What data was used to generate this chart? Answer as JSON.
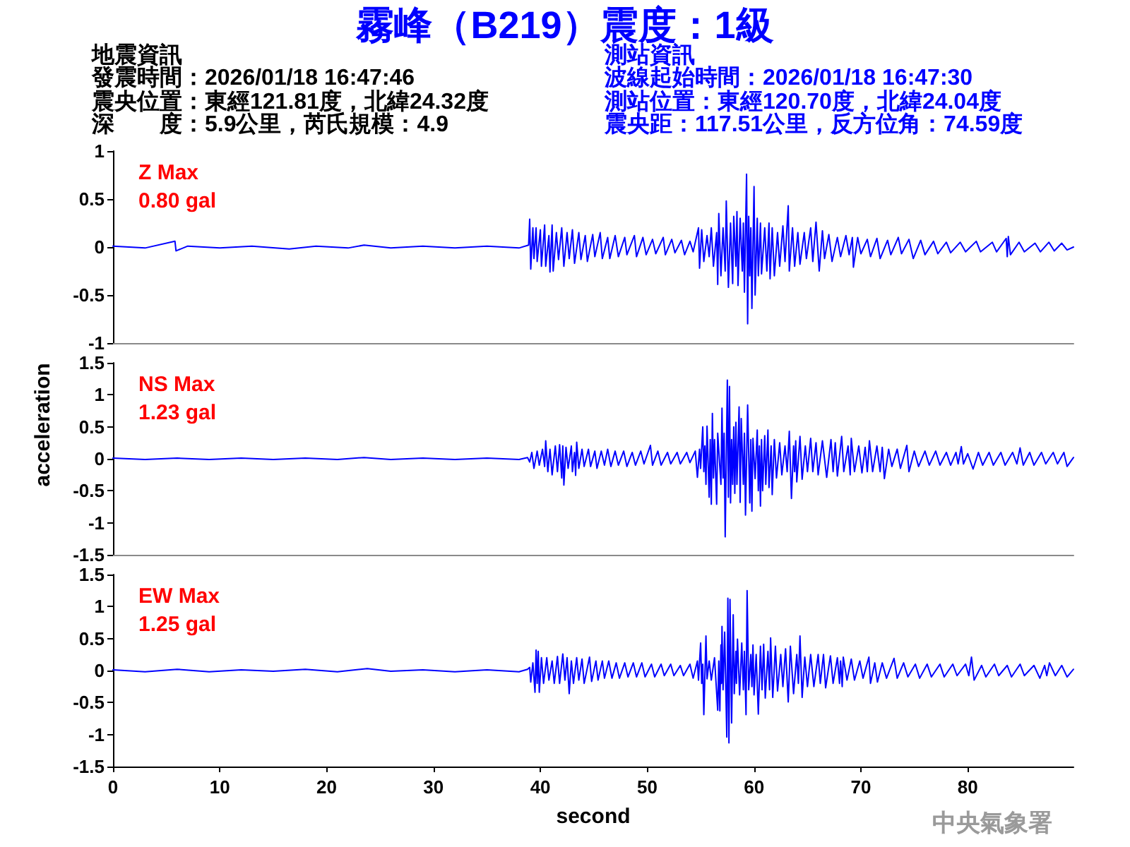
{
  "chart_data": [
    {
      "type": "other",
      "title": "霧峰（B219）震度：1級",
      "annotations": [
        "地震資訊",
        "發震時間：2026/01/18 16:47:46",
        "震央位置：東經121.81度，北緯24.32度",
        "深　　度：5.9公里，芮氏規模：4.9",
        "測站資訊",
        "波線起始時間：2026/01/18 16:47:30",
        "測站位置：東經120.70度，北緯24.04度",
        "震央距：117.51公里，反方位角：74.59度"
      ]
    },
    {
      "type": "line",
      "title": "Z Max",
      "subtitle": "0.80 gal",
      "xlim": [
        0,
        89.9
      ],
      "ylim": [
        -1,
        1
      ],
      "yticks": [
        -1,
        -0.5,
        0,
        0.5,
        1
      ],
      "tick_labels": "y",
      "color": "#0000ff",
      "x": [
        0,
        3,
        5.8,
        5.9,
        7,
        10,
        13,
        16.5,
        19,
        22,
        23.5,
        26,
        29,
        32,
        35,
        38,
        38.9,
        39,
        39.1,
        39.3,
        39.4,
        39.6,
        39.7,
        40,
        40.1,
        40.4,
        40.5,
        40.8,
        40.9,
        41.1,
        41.2,
        41.5,
        41.7,
        42,
        42.2,
        42.5,
        42.7,
        43,
        43.2,
        43.6,
        43.8,
        44.2,
        44.4,
        44.9,
        45.1,
        45.6,
        45.8,
        46.3,
        46.5,
        47,
        47.3,
        47.9,
        48.1,
        48.8,
        49,
        49.6,
        49.9,
        50.5,
        50.8,
        51.5,
        51.7,
        52.3,
        52.6,
        53.2,
        53.5,
        54,
        54.3,
        54.8,
        54.9,
        55.1,
        55.3,
        55.6,
        55.8,
        56,
        56.2,
        56.5,
        56.6,
        56.7,
        56.9,
        57.1,
        57.3,
        57.4,
        57.6,
        57.8,
        58,
        58.1,
        58.3,
        58.4,
        58.5,
        58.7,
        58.9,
        59,
        59.1,
        59.3,
        59.4,
        59.5,
        59.6,
        59.7,
        59.8,
        60,
        60.1,
        60.3,
        60.4,
        60.6,
        60.7,
        61,
        61.2,
        61.4,
        61.5,
        61.7,
        61.9,
        62.2,
        62.4,
        62.7,
        62.9,
        63.2,
        63.3,
        63.6,
        63.8,
        64.1,
        64.3,
        64.7,
        64.9,
        65.3,
        65.5,
        65.8,
        66.1,
        66.4,
        66.6,
        67,
        67.3,
        67.8,
        68.1,
        68.6,
        68.9,
        69.2,
        69.3,
        69.7,
        70,
        70.6,
        70.9,
        71.5,
        71.8,
        72.5,
        72.8,
        73.5,
        73.8,
        74.5,
        74.9,
        75.6,
        76,
        76.8,
        77.2,
        78,
        78.4,
        79.3,
        79.8,
        80.8,
        81.2,
        82.3,
        82.7,
        83.6,
        83.7,
        83.8,
        84,
        84.8,
        85.3,
        86.3,
        86.8,
        87.6,
        88.1,
        88.8,
        89.3,
        89.9
      ],
      "values": [
        0.01,
        -0.01,
        0.06,
        -0.04,
        0.01,
        -0.01,
        0.01,
        -0.02,
        0.01,
        -0.01,
        0.02,
        -0.01,
        0.01,
        -0.01,
        0.01,
        -0.01,
        0.02,
        0.29,
        -0.23,
        0.2,
        -0.12,
        0.2,
        -0.15,
        0.18,
        -0.2,
        0.23,
        -0.2,
        0.12,
        -0.26,
        0.23,
        -0.25,
        0.15,
        -0.13,
        0.2,
        -0.2,
        0.15,
        -0.12,
        0.18,
        -0.17,
        0.15,
        -0.13,
        0.12,
        -0.15,
        0.13,
        -0.1,
        0.15,
        -0.12,
        0.1,
        -0.12,
        0.12,
        -0.1,
        0.1,
        -0.08,
        0.12,
        -0.1,
        0.1,
        -0.08,
        0.08,
        -0.07,
        0.1,
        -0.08,
        0.08,
        -0.06,
        0.07,
        -0.08,
        0.06,
        -0.05,
        0.2,
        -0.22,
        0.18,
        -0.15,
        0.12,
        -0.1,
        0.2,
        -0.2,
        0.15,
        -0.39,
        0.35,
        -0.3,
        0.2,
        -0.25,
        0.48,
        -0.42,
        0.25,
        -0.38,
        0.32,
        -0.2,
        0.37,
        -0.4,
        0.3,
        -0.25,
        0.25,
        -0.47,
        0.76,
        -0.8,
        0.32,
        -0.3,
        0.2,
        -0.64,
        0.63,
        -0.5,
        0.3,
        -0.3,
        0.25,
        -0.28,
        0.2,
        -0.25,
        0.25,
        -0.33,
        0.2,
        -0.3,
        0.15,
        -0.2,
        0.22,
        -0.15,
        0.43,
        -0.25,
        0.2,
        -0.2,
        0.15,
        -0.18,
        0.15,
        -0.12,
        0.2,
        -0.15,
        0.26,
        -0.25,
        0.17,
        -0.12,
        0.13,
        -0.15,
        0.1,
        -0.1,
        0.12,
        -0.08,
        0.1,
        -0.21,
        0.1,
        -0.07,
        0.08,
        -0.1,
        0.09,
        -0.12,
        0.07,
        -0.08,
        0.1,
        -0.07,
        0.08,
        -0.12,
        0.07,
        -0.08,
        0.06,
        -0.07,
        0.05,
        -0.06,
        0.05,
        -0.05,
        0.06,
        -0.05,
        0.05,
        -0.05,
        0.09,
        -0.1,
        0.11,
        -0.08,
        0.05,
        -0.05,
        0.04,
        -0.05,
        0.05,
        -0.04,
        0.04,
        -0.03,
        0
      ]
    },
    {
      "type": "line",
      "title": "NS Max",
      "subtitle": "1.23 gal",
      "ylabel": "acceleration",
      "xlim": [
        0,
        89.9
      ],
      "ylim": [
        -1.5,
        1.5
      ],
      "yticks": [
        -1.5,
        -1,
        -0.5,
        0,
        0.5,
        1,
        1.5
      ],
      "tick_labels": "y",
      "color": "#0000ff",
      "x": [
        0,
        3,
        6,
        9,
        12,
        15,
        18,
        21,
        23.5,
        26,
        29,
        32,
        35,
        38,
        38.8,
        39,
        39.2,
        39.4,
        39.7,
        39.9,
        40.2,
        40.4,
        40.5,
        40.7,
        40.9,
        41.1,
        41.4,
        41.6,
        41.8,
        42,
        42.1,
        42.2,
        42.4,
        42.6,
        42.9,
        43,
        43.2,
        43.3,
        43.4,
        43.6,
        43.9,
        44.1,
        44.5,
        44.7,
        45.1,
        45.3,
        45.7,
        46,
        46.3,
        46.6,
        47,
        47.3,
        47.8,
        48.1,
        48.6,
        48.9,
        49.4,
        49.7,
        50.3,
        50.5,
        51,
        51.3,
        51.9,
        52.2,
        52.8,
        53.1,
        53.7,
        54,
        54.5,
        54.7,
        54.9,
        55,
        55.2,
        55.3,
        55.4,
        55.5,
        55.6,
        55.8,
        55.9,
        56,
        56.1,
        56.2,
        56.3,
        56.5,
        56.6,
        56.9,
        57,
        57.1,
        57.2,
        57.3,
        57.5,
        57.6,
        57.7,
        57.8,
        57.9,
        58,
        58.1,
        58.2,
        58.3,
        58.4,
        58.6,
        58.7,
        58.8,
        59,
        59.1,
        59.2,
        59.4,
        59.6,
        59.7,
        59.8,
        59.9,
        60.1,
        60.3,
        60.4,
        60.5,
        60.6,
        60.7,
        60.8,
        61,
        61.1,
        61.3,
        61.4,
        61.6,
        61.7,
        61.9,
        62.1,
        62.4,
        62.6,
        62.9,
        63.1,
        63.3,
        63.5,
        63.7,
        63.8,
        63.9,
        64,
        64.3,
        64.5,
        64.8,
        65,
        65.3,
        65.5,
        65.8,
        66,
        66.4,
        66.8,
        67.2,
        67.4,
        67.6,
        67.8,
        68.2,
        68.4,
        68.8,
        69,
        69.1,
        69.4,
        69.8,
        70.1,
        70.4,
        70.6,
        70.8,
        71.1,
        71.5,
        71.8,
        72,
        72.2,
        72.6,
        72.9,
        73.4,
        73.7,
        74.3,
        74.5,
        75,
        75.4,
        76,
        76.4,
        77,
        77.4,
        78,
        78.4,
        78.9,
        79.1,
        79.4,
        79.6,
        80,
        80.5,
        81,
        81.4,
        82,
        82.4,
        83.1,
        83.5,
        84.2,
        84.6,
        84.9,
        85.2,
        85.8,
        86.2,
        86.9,
        87.3,
        88,
        88.4,
        89,
        89.3,
        89.9
      ],
      "values": [
        0.01,
        -0.01,
        0.01,
        -0.01,
        0.01,
        -0.01,
        0.01,
        -0.01,
        0.02,
        -0.01,
        0.01,
        -0.01,
        0.01,
        -0.01,
        0.02,
        -0.05,
        0.1,
        -0.15,
        0.12,
        -0.1,
        0.15,
        -0.12,
        0.28,
        -0.2,
        0.15,
        -0.25,
        0.2,
        -0.2,
        0.22,
        -0.3,
        0.2,
        -0.41,
        0.18,
        -0.15,
        0.2,
        -0.2,
        0.1,
        -0.26,
        0.26,
        -0.15,
        0.15,
        -0.12,
        0.15,
        -0.12,
        0.12,
        -0.15,
        0.12,
        -0.1,
        0.15,
        -0.12,
        0.12,
        -0.1,
        0.12,
        -0.12,
        0.1,
        -0.1,
        0.12,
        -0.08,
        0.21,
        -0.1,
        0.12,
        -0.1,
        0.1,
        -0.08,
        0.1,
        -0.08,
        0.1,
        -0.06,
        0.12,
        -0.29,
        0.15,
        -0.15,
        0.5,
        -0.2,
        0.2,
        -0.4,
        0.51,
        -0.6,
        0.3,
        -0.71,
        0.71,
        -0.3,
        0.3,
        -0.71,
        0.4,
        -0.4,
        0.79,
        -0.3,
        0.4,
        -1.22,
        1.23,
        -0.6,
        1.13,
        -0.69,
        0.3,
        -0.4,
        0.5,
        -0.54,
        0.57,
        -0.4,
        0.81,
        -0.68,
        0.63,
        -0.4,
        0.4,
        -0.88,
        0.84,
        -0.69,
        0.3,
        -0.82,
        0.32,
        -0.31,
        0.45,
        -0.5,
        0.2,
        -0.74,
        0.3,
        -0.5,
        0.36,
        -0.4,
        0.45,
        -0.45,
        0.2,
        -0.56,
        0.3,
        -0.3,
        0.25,
        -0.25,
        0.2,
        -0.2,
        0.43,
        -0.62,
        0.2,
        -0.2,
        0.28,
        -0.36,
        0.35,
        -0.32,
        0.2,
        -0.2,
        0.32,
        -0.2,
        0.25,
        -0.25,
        0.28,
        -0.29,
        0.3,
        -0.2,
        0.25,
        -0.27,
        0.35,
        -0.2,
        0.2,
        -0.25,
        0.32,
        -0.2,
        0.2,
        -0.22,
        0.18,
        -0.2,
        0.28,
        -0.2,
        0.2,
        -0.2,
        0.18,
        -0.31,
        0.15,
        -0.12,
        0.15,
        -0.15,
        0.21,
        -0.2,
        0.12,
        -0.12,
        0.12,
        -0.1,
        0.12,
        -0.1,
        0.1,
        -0.1,
        0.1,
        -0.08,
        0.19,
        -0.08,
        0.08,
        -0.16,
        0.1,
        -0.1,
        0.1,
        -0.1,
        0.1,
        -0.1,
        0.1,
        -0.08,
        0.17,
        -0.1,
        0.1,
        -0.1,
        0.1,
        -0.08,
        0.1,
        -0.08,
        0.1,
        -0.12,
        0.02
      ]
    },
    {
      "type": "line",
      "title": "EW Max",
      "subtitle": "1.25 gal",
      "xlabel": "second",
      "annotations": [
        "中央氣象署"
      ],
      "xlim": [
        0,
        89.9
      ],
      "xticks": [
        0,
        10,
        20,
        30,
        40,
        50,
        60,
        70,
        80
      ],
      "ylim": [
        -1.5,
        1.5
      ],
      "yticks": [
        -1.5,
        -1,
        -0.5,
        0,
        0.5,
        1,
        1.5
      ],
      "color": "#0000ff",
      "x": [
        0,
        3,
        6,
        9,
        12,
        15,
        18,
        21,
        23.8,
        26,
        29,
        32,
        35,
        38,
        38.8,
        39,
        39.1,
        39.3,
        39.5,
        39.6,
        39.7,
        39.8,
        39.9,
        40.1,
        40.3,
        40.6,
        40.8,
        41.1,
        41.3,
        41.6,
        41.8,
        42.1,
        42.3,
        42.5,
        42.7,
        42.9,
        43.1,
        43.4,
        43.6,
        43.9,
        44.1,
        44.6,
        44.8,
        45.2,
        45.4,
        45.8,
        46,
        46.4,
        46.7,
        47.1,
        47.4,
        47.9,
        48.2,
        48.7,
        49,
        49.5,
        49.8,
        50.4,
        50.7,
        51.3,
        51.6,
        52.2,
        52.5,
        53.1,
        53.4,
        54,
        54.3,
        54.7,
        54.8,
        55,
        55.1,
        55.2,
        55.3,
        55.5,
        55.6,
        55.8,
        56,
        56.3,
        56.6,
        56.7,
        56.8,
        56.9,
        56.95,
        57,
        57.1,
        57.25,
        57.45,
        57.55,
        57.65,
        57.75,
        57.9,
        58.05,
        58.15,
        58.3,
        58.35,
        58.45,
        58.65,
        58.85,
        59,
        59.1,
        59.25,
        59.35,
        59.5,
        59.7,
        59.8,
        59.9,
        60,
        60.2,
        60.4,
        60.6,
        60.75,
        60.9,
        61.05,
        61.3,
        61.45,
        61.55,
        61.75,
        62,
        62.2,
        62.5,
        62.7,
        62.95,
        63.2,
        63.4,
        63.7,
        64,
        64.15,
        64.3,
        64.5,
        64.75,
        65,
        65.3,
        65.6,
        66,
        66.2,
        66.5,
        66.7,
        67.15,
        67.4,
        67.8,
        68,
        68.1,
        68.25,
        68.35,
        68.7,
        69.1,
        69.4,
        69.9,
        70.2,
        70.75,
        70.9,
        71.3,
        71.55,
        72,
        72.4,
        73.1,
        73.4,
        74,
        74.4,
        75.1,
        75.5,
        76.2,
        76.6,
        77.4,
        77.8,
        78.6,
        79,
        79.8,
        80.1,
        80.35,
        80.6,
        81.3,
        81.7,
        82.5,
        82.9,
        83.7,
        84.1,
        84.9,
        85.3,
        86.2,
        86.75,
        87.2,
        87.4,
        87.65,
        88.2,
        88.8,
        89.3,
        89.9
      ],
      "values": [
        0.01,
        -0.02,
        0.02,
        -0.02,
        0.01,
        -0.01,
        0.02,
        -0.02,
        0.03,
        -0.01,
        0.01,
        -0.02,
        0.01,
        -0.02,
        0.02,
        0.05,
        -0.18,
        0.12,
        -0.34,
        0.32,
        -0.2,
        0.3,
        -0.34,
        0.2,
        -0.2,
        0.2,
        -0.15,
        0.15,
        -0.2,
        0.22,
        -0.2,
        0.26,
        -0.15,
        0.2,
        -0.36,
        0.15,
        -0.2,
        0.2,
        -0.15,
        0.18,
        -0.2,
        0.21,
        -0.17,
        0.15,
        -0.15,
        0.15,
        -0.12,
        0.15,
        -0.12,
        0.12,
        -0.12,
        0.12,
        -0.1,
        0.12,
        -0.1,
        0.12,
        -0.1,
        0.1,
        -0.1,
        0.1,
        -0.08,
        0.1,
        -0.08,
        0.08,
        -0.08,
        0.1,
        -0.12,
        0.15,
        -0.15,
        0.43,
        -0.2,
        0.1,
        -0.69,
        0.54,
        -0.13,
        0.15,
        -0.15,
        0.2,
        -0.62,
        0.15,
        -0.63,
        0.4,
        -0.2,
        0.69,
        -0.3,
        0.6,
        -1.04,
        1.13,
        -1.13,
        1.11,
        -0.82,
        0.87,
        -0.36,
        0.3,
        -0.2,
        0.49,
        -0.38,
        0.43,
        -0.3,
        0.3,
        -0.69,
        1.25,
        -0.3,
        0.25,
        -0.25,
        0.4,
        -0.38,
        0.25,
        -0.68,
        0.38,
        -0.3,
        0.41,
        -0.43,
        0.3,
        -0.3,
        0.51,
        -0.42,
        0.38,
        -0.32,
        0.25,
        -0.25,
        0.34,
        -0.49,
        0.38,
        -0.36,
        0.25,
        -0.2,
        0.54,
        -0.42,
        0.21,
        -0.25,
        0.25,
        -0.25,
        0.25,
        -0.2,
        0.25,
        -0.27,
        0.23,
        -0.2,
        0.2,
        -0.2,
        0.15,
        -0.25,
        0.21,
        -0.15,
        0.18,
        -0.15,
        0.15,
        -0.12,
        0.21,
        -0.2,
        0.12,
        -0.18,
        0.12,
        -0.12,
        0.19,
        -0.12,
        0.12,
        -0.1,
        0.1,
        -0.12,
        0.1,
        -0.1,
        0.1,
        -0.1,
        0.1,
        -0.08,
        0.1,
        -0.08,
        0.21,
        -0.15,
        0.08,
        -0.1,
        0.1,
        -0.08,
        0.08,
        -0.1,
        0.1,
        -0.08,
        0.08,
        -0.12,
        0.08,
        -0.08,
        0.12,
        -0.08,
        0.08,
        -0.1,
        0.02
      ]
    }
  ]
}
